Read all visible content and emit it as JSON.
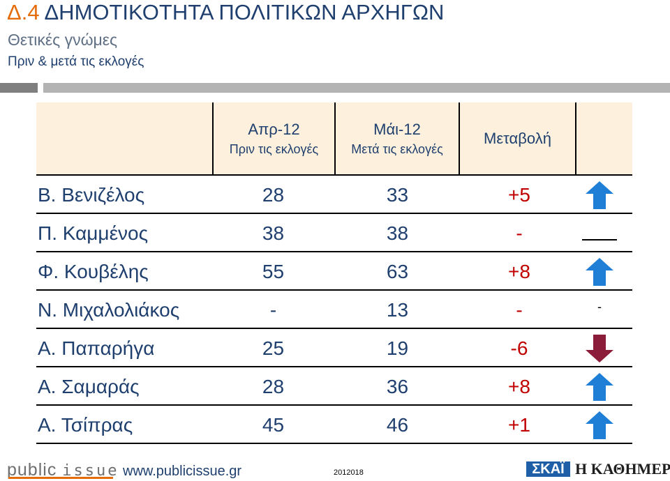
{
  "header": {
    "title_num": "Δ.4",
    "title_text": "ΔΗΜΟΤΙΚΟΤΗΤΑ ΠΟΛΙΤΙΚΩΝ ΑΡΧΗΓΩΝ",
    "subtitle": "Θετικές γνώμες",
    "subtitle2": "Πριν & μετά τις εκλογές"
  },
  "columns": {
    "col1_main": "Απρ-12",
    "col1_sub": "Πριν τις εκλογές",
    "col2_main": "Μάι-12",
    "col2_sub": "Μετά τις εκλογές",
    "col3_main": "Μεταβολή"
  },
  "rows": [
    {
      "name": "Β. Βενιζέλος",
      "v1": "28",
      "v2": "33",
      "change": "+5",
      "icon": "up-arrow-icon"
    },
    {
      "name": "Π. Καμμένος",
      "v1": "38",
      "v2": "38",
      "change": "-",
      "icon": "no-change-line-icon"
    },
    {
      "name": "Φ. Κουβέλης",
      "v1": "55",
      "v2": "63",
      "change": "+8",
      "icon": "up-arrow-icon"
    },
    {
      "name": "Ν. Μιχαλολιάκος",
      "v1": "-",
      "v2": "13",
      "change": "-",
      "icon": "dash-icon",
      "icon_text": "-"
    },
    {
      "name": "Α. Παπαρήγα",
      "v1": "25",
      "v2": "19",
      "change": "-6",
      "icon": "down-arrow-icon"
    },
    {
      "name": "Α. Σαμαράς",
      "v1": "28",
      "v2": "36",
      "change": "+8",
      "icon": "up-arrow-icon"
    },
    {
      "name": "Α. Τσίπρας",
      "v1": "45",
      "v2": "46",
      "change": "+1",
      "icon": "up-arrow-icon"
    }
  ],
  "colors": {
    "up_arrow": "#1f7fd6",
    "down_arrow": "#8c1d3a",
    "change_text": "#c00000",
    "title_blue": "#1f3f6e",
    "title_orange": "#e46c0a"
  },
  "footer": {
    "brand_public": "public",
    "brand_issue": "issue",
    "url": "www.publicissue.gr",
    "code": "2012018",
    "skai": "ΣΚΑΪ",
    "kathimerini": "Η ΚΑΘΗΜΕΡΙΝΗ"
  }
}
